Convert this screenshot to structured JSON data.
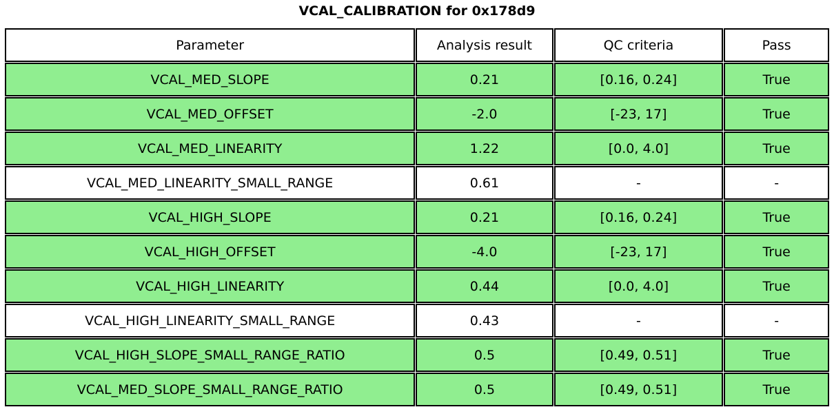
{
  "title": "VCAL_CALIBRATION for 0x178d9",
  "colors": {
    "pass_row_green": "#90EE90",
    "plain_row_white": "#FFFFFF",
    "border_black": "#000000",
    "background": "#FFFFFF"
  },
  "chart_data": {
    "type": "table",
    "title": "VCAL_CALIBRATION for 0x178d9",
    "columns": [
      "Parameter",
      "Analysis result",
      "QC criteria",
      "Pass"
    ],
    "rows": [
      {
        "parameter": "VCAL_MED_SLOPE",
        "analysis_result": "0.21",
        "qc_criteria": "[0.16, 0.24]",
        "pass": "True",
        "highlight": true
      },
      {
        "parameter": "VCAL_MED_OFFSET",
        "analysis_result": "-2.0",
        "qc_criteria": "[-23, 17]",
        "pass": "True",
        "highlight": true
      },
      {
        "parameter": "VCAL_MED_LINEARITY",
        "analysis_result": "1.22",
        "qc_criteria": "[0.0, 4.0]",
        "pass": "True",
        "highlight": true
      },
      {
        "parameter": "VCAL_MED_LINEARITY_SMALL_RANGE",
        "analysis_result": "0.61",
        "qc_criteria": "-",
        "pass": "-",
        "highlight": false
      },
      {
        "parameter": "VCAL_HIGH_SLOPE",
        "analysis_result": "0.21",
        "qc_criteria": "[0.16, 0.24]",
        "pass": "True",
        "highlight": true
      },
      {
        "parameter": "VCAL_HIGH_OFFSET",
        "analysis_result": "-4.0",
        "qc_criteria": "[-23, 17]",
        "pass": "True",
        "highlight": true
      },
      {
        "parameter": "VCAL_HIGH_LINEARITY",
        "analysis_result": "0.44",
        "qc_criteria": "[0.0, 4.0]",
        "pass": "True",
        "highlight": true
      },
      {
        "parameter": "VCAL_HIGH_LINEARITY_SMALL_RANGE",
        "analysis_result": "0.43",
        "qc_criteria": "-",
        "pass": "-",
        "highlight": false
      },
      {
        "parameter": "VCAL_HIGH_SLOPE_SMALL_RANGE_RATIO",
        "analysis_result": "0.5",
        "qc_criteria": "[0.49, 0.51]",
        "pass": "True",
        "highlight": true
      },
      {
        "parameter": "VCAL_MED_SLOPE_SMALL_RANGE_RATIO",
        "analysis_result": "0.5",
        "qc_criteria": "[0.49, 0.51]",
        "pass": "True",
        "highlight": true
      }
    ]
  }
}
